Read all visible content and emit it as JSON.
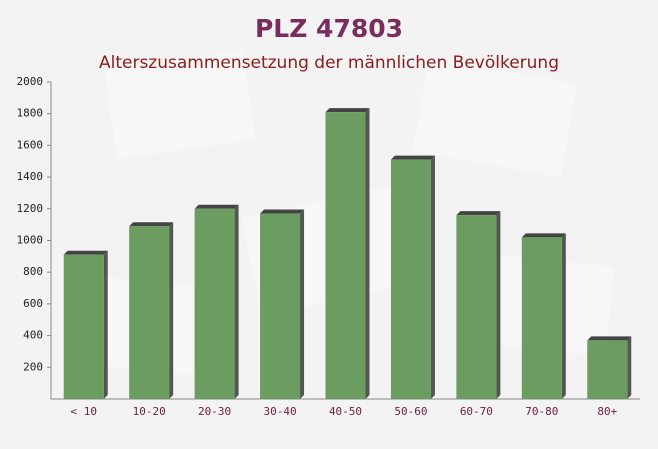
{
  "chart_data": {
    "type": "bar",
    "title": "PLZ 47803",
    "subtitle": "Alterszusammensetzung der männlichen Bevölkerung",
    "categories": [
      "< 10",
      "10-20",
      "20-30",
      "30-40",
      "40-50",
      "50-60",
      "60-70",
      "70-80",
      "80+"
    ],
    "values": [
      910,
      1090,
      1200,
      1170,
      1810,
      1510,
      1160,
      1020,
      370
    ],
    "color": "#6a9d5f",
    "ylim": [
      0,
      2000
    ],
    "yticks": [
      200,
      400,
      600,
      800,
      1000,
      1200,
      1400,
      1600,
      1800,
      2000
    ],
    "grid": false
  }
}
